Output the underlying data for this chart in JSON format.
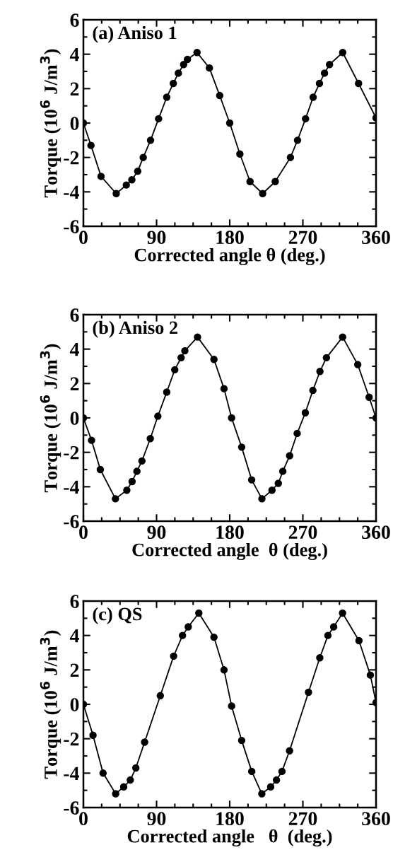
{
  "chart_data": [
    {
      "type": "line",
      "title": "(a) Aniso 1",
      "xlabel": "Corrected angle θ (deg.)",
      "ylabel": "Torque (10$^{6}$ J/m$^{3}$)",
      "xlim": [
        0,
        360
      ],
      "xticks": [
        0,
        90,
        180,
        270,
        360
      ],
      "ylim": [
        -6,
        6
      ],
      "yticks": [
        -6,
        -4,
        -2,
        0,
        2,
        4,
        6
      ],
      "marker": "circle",
      "line_style": "solid",
      "grid": false,
      "legend": false,
      "series": [
        {
          "color": "#000000",
          "x": [
            0,
            9.3,
            21.7,
            40.4,
            52.8,
            59.6,
            66.8,
            73.6,
            82.6,
            92.5,
            102.5,
            110.6,
            116.8,
            123.3,
            128,
            139.8,
            155,
            167.7,
            180,
            192.5,
            205,
            220.5,
            236,
            254.7,
            263.4,
            273.3,
            282.6,
            290.4,
            296.6,
            302.8,
            319,
            338.5,
            360
          ],
          "values": [
            0,
            -1.3,
            -3.1,
            -4.1,
            -3.6,
            -3.3,
            -2.8,
            -2.0,
            -1.0,
            0.25,
            1.5,
            2.3,
            2.9,
            3.4,
            3.7,
            4.1,
            3.2,
            1.6,
            0,
            -1.8,
            -3.4,
            -4.1,
            -3.4,
            -2.0,
            -1.0,
            0.25,
            1.5,
            2.3,
            2.9,
            3.4,
            4.1,
            2.3,
            0.3
          ]
        }
      ]
    },
    {
      "type": "line",
      "title": "(b) Aniso 2",
      "xlabel": "Corrected angle  θ (deg.)",
      "ylabel": "Torque (10$^{6}$ J/m$^{3}$)",
      "xlim": [
        0,
        360
      ],
      "xticks": [
        0,
        90,
        180,
        270,
        360
      ],
      "ylim": [
        -6,
        6
      ],
      "yticks": [
        -6,
        -4,
        -2,
        0,
        2,
        4,
        6
      ],
      "marker": "circle",
      "line_style": "solid",
      "grid": false,
      "legend": false,
      "series": [
        {
          "color": "#000000",
          "x": [
            0,
            10,
            20.8,
            39.4,
            53.4,
            59.9,
            65.8,
            72,
            82.3,
            91.6,
            102.5,
            112.4,
            120.2,
            124.8,
            140.4,
            160.6,
            173,
            182.3,
            194.7,
            207,
            219.6,
            232,
            239.8,
            245.3,
            253.7,
            263,
            273,
            282.3,
            291,
            299,
            318.9,
            337.5,
            351.5,
            360
          ],
          "values": [
            0,
            -1.3,
            -3.0,
            -4.7,
            -4.2,
            -3.7,
            -3.1,
            -2.5,
            -1.2,
            0.1,
            1.5,
            2.8,
            3.5,
            3.9,
            4.7,
            3.4,
            1.7,
            0,
            -1.7,
            -3.6,
            -4.7,
            -4.2,
            -3.8,
            -3.1,
            -2.2,
            -0.9,
            0.3,
            1.6,
            2.7,
            3.5,
            4.7,
            3.1,
            1.2,
            0
          ]
        }
      ]
    },
    {
      "type": "line",
      "title": "(c) QS",
      "xlabel": "Corrected angle   θ  (deg.)",
      "ylabel": "Torque (10$^{6}$ J/m$^{3}$)",
      "xlim": [
        0,
        360
      ],
      "xticks": [
        0,
        90,
        180,
        270,
        360
      ],
      "ylim": [
        -6,
        6
      ],
      "yticks": [
        -6,
        -4,
        -2,
        0,
        2,
        4,
        6
      ],
      "marker": "circle",
      "line_style": "solid",
      "grid": false,
      "legend": false,
      "series": [
        {
          "color": "#000000",
          "x": [
            0,
            11.8,
            24.2,
            39.7,
            49.6,
            57.7,
            64.5,
            75.3,
            94.6,
            111,
            121.9,
            129,
            142,
            160.6,
            173,
            182.3,
            194.7,
            207.1,
            219.5,
            230.4,
            237.5,
            244.3,
            253.6,
            276.9,
            290.8,
            300.8,
            307.9,
            318.8,
            339,
            353,
            360
          ],
          "values": [
            0,
            -1.8,
            -4.0,
            -5.2,
            -4.8,
            -4.4,
            -3.7,
            -2.2,
            0.5,
            2.8,
            4.0,
            4.5,
            5.3,
            3.9,
            2.0,
            -0.1,
            -2.1,
            -3.9,
            -5.2,
            -4.8,
            -4.4,
            -3.9,
            -2.7,
            0.7,
            2.7,
            4.0,
            4.5,
            5.3,
            3.7,
            1.7,
            0.1
          ]
        }
      ]
    }
  ]
}
